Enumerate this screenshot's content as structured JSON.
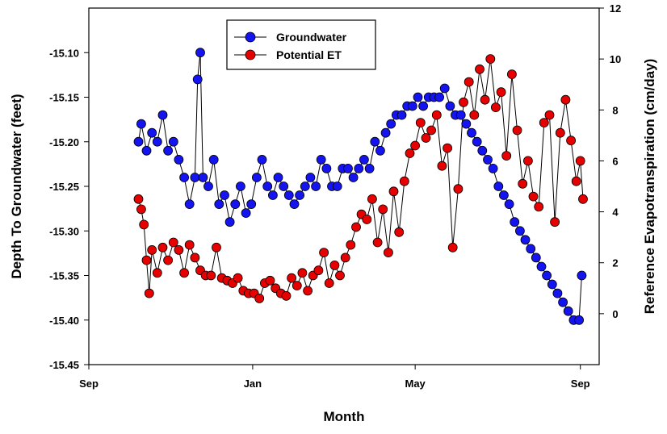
{
  "chart_data": {
    "type": "scatter",
    "xlabel": "Month",
    "ylabel": "Depth To Groundwater (feet)",
    "y2label": "Reference Evapotranspiration (cm/day)",
    "x_ticks": [
      "Sep",
      "Jan",
      "May",
      "Sep"
    ],
    "x_range": [
      "2011-09-01",
      "2012-09-15"
    ],
    "ylim": [
      -15.45,
      -15.05
    ],
    "y_ticks": [
      "-15.10",
      "-15.15",
      "-15.20",
      "-15.25",
      "-15.30",
      "-15.35",
      "-15.40",
      "-15.45"
    ],
    "y2lim": [
      -2,
      12
    ],
    "y2_ticks": [
      "0",
      "2",
      "4",
      "6",
      "8",
      "10",
      "12"
    ],
    "grid": false,
    "legend_position": "top-center",
    "series": [
      {
        "name": "Groundwater",
        "axis": "left",
        "color": "#1414f0",
        "points": [
          [
            "2011-10-08",
            -15.2
          ],
          [
            "2011-10-10",
            -15.18
          ],
          [
            "2011-10-14",
            -15.21
          ],
          [
            "2011-10-18",
            -15.19
          ],
          [
            "2011-10-22",
            -15.2
          ],
          [
            "2011-10-26",
            -15.17
          ],
          [
            "2011-10-30",
            -15.21
          ],
          [
            "2011-11-03",
            -15.2
          ],
          [
            "2011-11-07",
            -15.22
          ],
          [
            "2011-11-11",
            -15.24
          ],
          [
            "2011-11-15",
            -15.27
          ],
          [
            "2011-11-19",
            -15.24
          ],
          [
            "2011-11-21",
            -15.13
          ],
          [
            "2011-11-23",
            -15.1
          ],
          [
            "2011-11-25",
            -15.24
          ],
          [
            "2011-11-29",
            -15.25
          ],
          [
            "2011-12-03",
            -15.22
          ],
          [
            "2011-12-07",
            -15.27
          ],
          [
            "2011-12-11",
            -15.26
          ],
          [
            "2011-12-15",
            -15.29
          ],
          [
            "2011-12-19",
            -15.27
          ],
          [
            "2011-12-23",
            -15.25
          ],
          [
            "2011-12-27",
            -15.28
          ],
          [
            "2011-12-31",
            -15.27
          ],
          [
            "2012-01-04",
            -15.24
          ],
          [
            "2012-01-08",
            -15.22
          ],
          [
            "2012-01-12",
            -15.25
          ],
          [
            "2012-01-16",
            -15.26
          ],
          [
            "2012-01-20",
            -15.24
          ],
          [
            "2012-01-24",
            -15.25
          ],
          [
            "2012-01-28",
            -15.26
          ],
          [
            "2012-02-01",
            -15.27
          ],
          [
            "2012-02-05",
            -15.26
          ],
          [
            "2012-02-09",
            -15.25
          ],
          [
            "2012-02-13",
            -15.24
          ],
          [
            "2012-02-17",
            -15.25
          ],
          [
            "2012-02-21",
            -15.22
          ],
          [
            "2012-02-25",
            -15.23
          ],
          [
            "2012-02-29",
            -15.25
          ],
          [
            "2012-03-04",
            -15.25
          ],
          [
            "2012-03-08",
            -15.23
          ],
          [
            "2012-03-12",
            -15.23
          ],
          [
            "2012-03-16",
            -15.24
          ],
          [
            "2012-03-20",
            -15.23
          ],
          [
            "2012-03-24",
            -15.22
          ],
          [
            "2012-03-28",
            -15.23
          ],
          [
            "2012-04-01",
            -15.2
          ],
          [
            "2012-04-05",
            -15.21
          ],
          [
            "2012-04-09",
            -15.19
          ],
          [
            "2012-04-13",
            -15.18
          ],
          [
            "2012-04-17",
            -15.17
          ],
          [
            "2012-04-21",
            -15.17
          ],
          [
            "2012-04-25",
            -15.16
          ],
          [
            "2012-04-29",
            -15.16
          ],
          [
            "2012-05-03",
            -15.15
          ],
          [
            "2012-05-07",
            -15.16
          ],
          [
            "2012-05-11",
            -15.15
          ],
          [
            "2012-05-15",
            -15.15
          ],
          [
            "2012-05-19",
            -15.15
          ],
          [
            "2012-05-23",
            -15.14
          ],
          [
            "2012-05-27",
            -15.16
          ],
          [
            "2012-05-31",
            -15.17
          ],
          [
            "2012-06-04",
            -15.17
          ],
          [
            "2012-06-08",
            -15.18
          ],
          [
            "2012-06-12",
            -15.19
          ],
          [
            "2012-06-16",
            -15.2
          ],
          [
            "2012-06-20",
            -15.21
          ],
          [
            "2012-06-24",
            -15.22
          ],
          [
            "2012-06-28",
            -15.23
          ],
          [
            "2012-07-02",
            -15.25
          ],
          [
            "2012-07-06",
            -15.26
          ],
          [
            "2012-07-10",
            -15.27
          ],
          [
            "2012-07-14",
            -15.29
          ],
          [
            "2012-07-18",
            -15.3
          ],
          [
            "2012-07-22",
            -15.31
          ],
          [
            "2012-07-26",
            -15.32
          ],
          [
            "2012-07-30",
            -15.33
          ],
          [
            "2012-08-03",
            -15.34
          ],
          [
            "2012-08-07",
            -15.35
          ],
          [
            "2012-08-11",
            -15.36
          ],
          [
            "2012-08-15",
            -15.37
          ],
          [
            "2012-08-19",
            -15.38
          ],
          [
            "2012-08-23",
            -15.39
          ],
          [
            "2012-08-27",
            -15.4
          ],
          [
            "2012-08-31",
            -15.4
          ],
          [
            "2012-09-02",
            -15.35
          ]
        ]
      },
      {
        "name": "Potential ET",
        "axis": "right",
        "color": "#e60000",
        "points": [
          [
            "2011-10-08",
            4.5
          ],
          [
            "2011-10-10",
            4.1
          ],
          [
            "2011-10-12",
            3.5
          ],
          [
            "2011-10-14",
            2.1
          ],
          [
            "2011-10-16",
            0.8
          ],
          [
            "2011-10-18",
            2.5
          ],
          [
            "2011-10-22",
            1.6
          ],
          [
            "2011-10-26",
            2.6
          ],
          [
            "2011-10-30",
            2.1
          ],
          [
            "2011-11-03",
            2.8
          ],
          [
            "2011-11-07",
            2.5
          ],
          [
            "2011-11-11",
            1.6
          ],
          [
            "2011-11-15",
            2.7
          ],
          [
            "2011-11-19",
            2.2
          ],
          [
            "2011-11-23",
            1.7
          ],
          [
            "2011-11-27",
            1.5
          ],
          [
            "2011-12-01",
            1.5
          ],
          [
            "2011-12-05",
            2.6
          ],
          [
            "2011-12-09",
            1.4
          ],
          [
            "2011-12-13",
            1.3
          ],
          [
            "2011-12-17",
            1.2
          ],
          [
            "2011-12-21",
            1.4
          ],
          [
            "2011-12-25",
            0.9
          ],
          [
            "2011-12-29",
            0.8
          ],
          [
            "2012-01-02",
            0.8
          ],
          [
            "2012-01-06",
            0.6
          ],
          [
            "2012-01-10",
            1.2
          ],
          [
            "2012-01-14",
            1.3
          ],
          [
            "2012-01-18",
            1.0
          ],
          [
            "2012-01-22",
            0.8
          ],
          [
            "2012-01-26",
            0.7
          ],
          [
            "2012-01-30",
            1.4
          ],
          [
            "2012-02-03",
            1.1
          ],
          [
            "2012-02-07",
            1.6
          ],
          [
            "2012-02-11",
            0.9
          ],
          [
            "2012-02-15",
            1.5
          ],
          [
            "2012-02-19",
            1.7
          ],
          [
            "2012-02-23",
            2.4
          ],
          [
            "2012-02-27",
            1.2
          ],
          [
            "2012-03-02",
            1.9
          ],
          [
            "2012-03-06",
            1.5
          ],
          [
            "2012-03-10",
            2.2
          ],
          [
            "2012-03-14",
            2.7
          ],
          [
            "2012-03-18",
            3.4
          ],
          [
            "2012-03-22",
            3.9
          ],
          [
            "2012-03-26",
            3.7
          ],
          [
            "2012-03-30",
            4.5
          ],
          [
            "2012-04-03",
            2.8
          ],
          [
            "2012-04-07",
            4.1
          ],
          [
            "2012-04-11",
            2.4
          ],
          [
            "2012-04-15",
            4.8
          ],
          [
            "2012-04-19",
            3.2
          ],
          [
            "2012-04-23",
            5.2
          ],
          [
            "2012-04-27",
            6.3
          ],
          [
            "2012-05-01",
            6.6
          ],
          [
            "2012-05-05",
            7.5
          ],
          [
            "2012-05-09",
            6.9
          ],
          [
            "2012-05-13",
            7.2
          ],
          [
            "2012-05-17",
            7.8
          ],
          [
            "2012-05-21",
            5.8
          ],
          [
            "2012-05-25",
            6.5
          ],
          [
            "2012-05-29",
            2.6
          ],
          [
            "2012-06-02",
            4.9
          ],
          [
            "2012-06-06",
            8.3
          ],
          [
            "2012-06-10",
            9.1
          ],
          [
            "2012-06-14",
            7.8
          ],
          [
            "2012-06-18",
            9.6
          ],
          [
            "2012-06-22",
            8.4
          ],
          [
            "2012-06-26",
            10.0
          ],
          [
            "2012-06-30",
            8.1
          ],
          [
            "2012-07-04",
            8.7
          ],
          [
            "2012-07-08",
            6.2
          ],
          [
            "2012-07-12",
            9.4
          ],
          [
            "2012-07-16",
            7.2
          ],
          [
            "2012-07-20",
            5.1
          ],
          [
            "2012-07-24",
            6.0
          ],
          [
            "2012-07-28",
            4.6
          ],
          [
            "2012-08-01",
            4.2
          ],
          [
            "2012-08-05",
            7.5
          ],
          [
            "2012-08-09",
            7.8
          ],
          [
            "2012-08-13",
            3.6
          ],
          [
            "2012-08-17",
            7.1
          ],
          [
            "2012-08-21",
            8.4
          ],
          [
            "2012-08-25",
            6.8
          ],
          [
            "2012-08-29",
            5.2
          ],
          [
            "2012-09-01",
            6.0
          ],
          [
            "2012-09-03",
            4.5
          ]
        ]
      }
    ]
  }
}
